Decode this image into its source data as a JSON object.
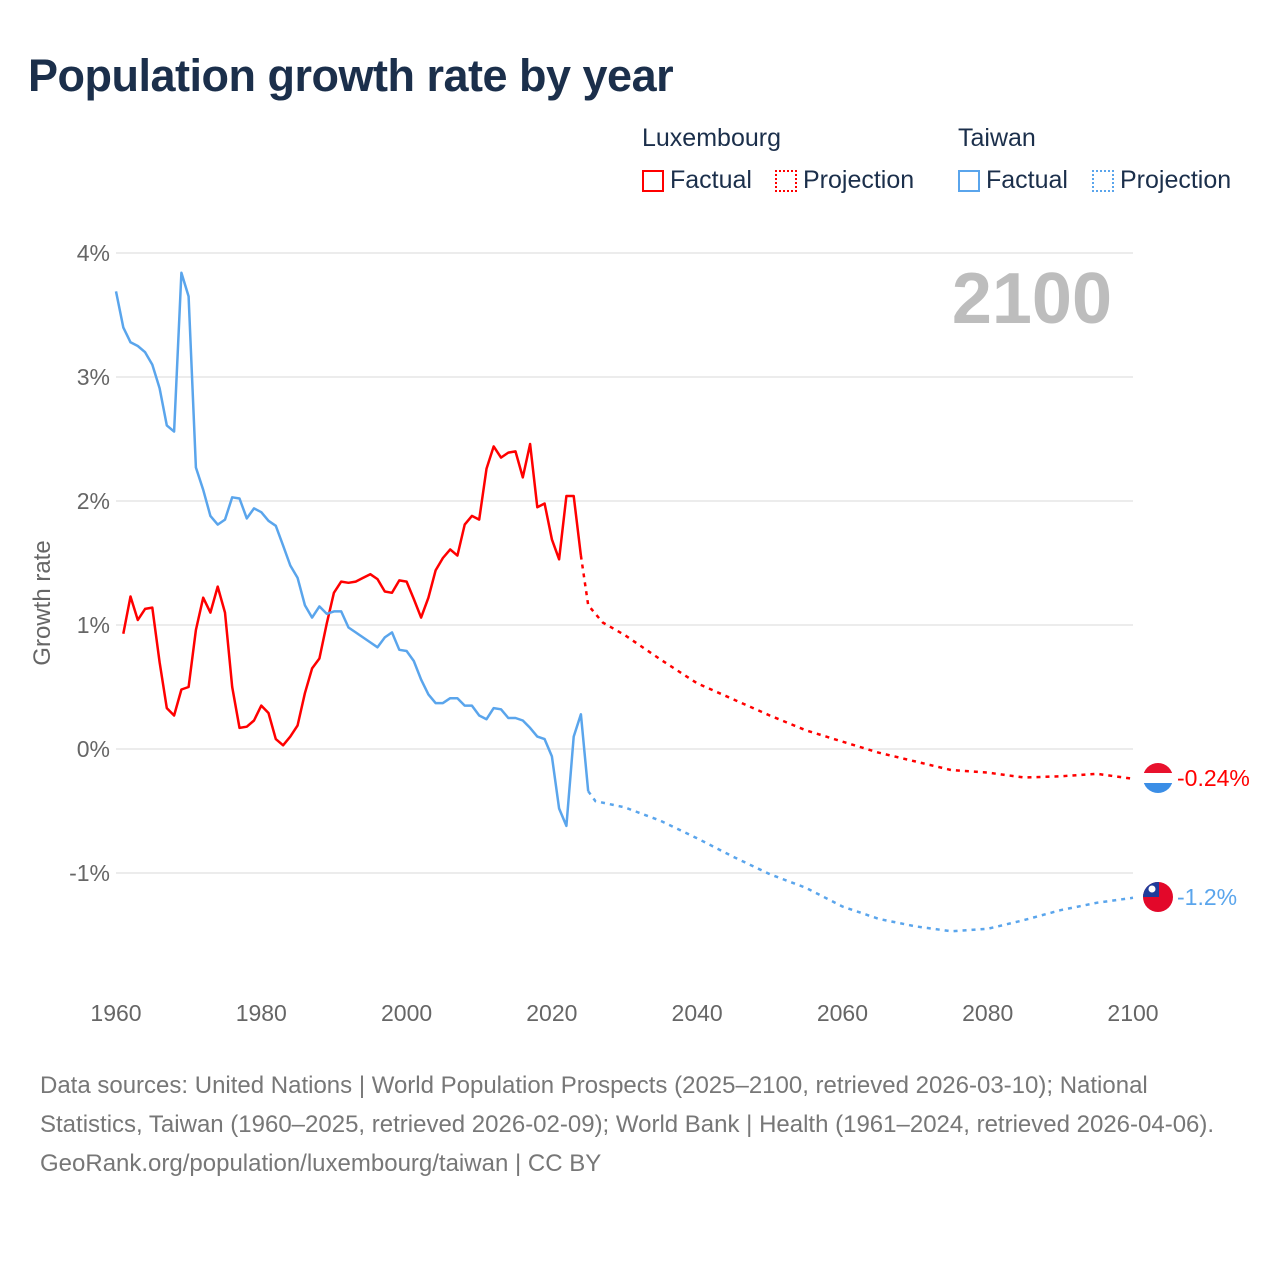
{
  "title": "Population growth rate by year",
  "legend": {
    "groups": [
      {
        "country": "Luxembourg",
        "factual": "Factual",
        "projection": "Projection",
        "color": "#ff0000"
      },
      {
        "country": "Taiwan",
        "factual": "Factual",
        "projection": "Projection",
        "color": "#5aa5ec"
      }
    ]
  },
  "year_watermark": "2100",
  "end_labels": {
    "luxembourg": "-0.24%",
    "taiwan": "-1.2%"
  },
  "footer": {
    "sources": "Data sources: United Nations | World Population Prospects (2025–2100, retrieved 2026-03-10); National Statistics, Taiwan (1960–2025, retrieved 2026-02-09); World Bank | Health (1961–2024, retrieved 2026-04-06).",
    "credit": "GeoRank.org/population/luxembourg/taiwan | CC BY"
  },
  "chart_data": {
    "type": "line",
    "title": "Population growth rate by year",
    "xlabel": "",
    "ylabel": "Growth rate",
    "xlim": [
      1960,
      2100
    ],
    "ylim": [
      -2,
      4
    ],
    "x_ticks": [
      "1960",
      "1980",
      "2000",
      "2020",
      "2040",
      "2060",
      "2080",
      "2100"
    ],
    "y_ticks": [
      {
        "v": 4,
        "label": "4%"
      },
      {
        "v": 3,
        "label": "3%"
      },
      {
        "v": 2,
        "label": "2%"
      },
      {
        "v": 1,
        "label": "1%"
      },
      {
        "v": 0,
        "label": "0%"
      },
      {
        "v": -1,
        "label": "-1%"
      }
    ],
    "grid": true,
    "legend_position": "top-right",
    "series": [
      {
        "name": "Luxembourg Factual",
        "color": "#ff0000",
        "dashed": false,
        "x": [
          1961,
          1962,
          1963,
          1964,
          1965,
          1966,
          1967,
          1968,
          1969,
          1970,
          1971,
          1972,
          1973,
          1974,
          1975,
          1976,
          1977,
          1978,
          1979,
          1980,
          1981,
          1982,
          1983,
          1984,
          1985,
          1986,
          1987,
          1988,
          1989,
          1990,
          1991,
          1992,
          1993,
          1994,
          1995,
          1996,
          1997,
          1998,
          1999,
          2000,
          2001,
          2002,
          2003,
          2004,
          2005,
          2006,
          2007,
          2008,
          2009,
          2010,
          2011,
          2012,
          2013,
          2014,
          2015,
          2016,
          2017,
          2018,
          2019,
          2020,
          2021,
          2022,
          2023,
          2024
        ],
        "y": [
          0.93,
          1.23,
          1.04,
          1.13,
          1.14,
          0.7,
          0.33,
          0.27,
          0.48,
          0.5,
          0.96,
          1.22,
          1.1,
          1.31,
          1.1,
          0.5,
          0.17,
          0.18,
          0.23,
          0.35,
          0.29,
          0.08,
          0.03,
          0.1,
          0.19,
          0.45,
          0.65,
          0.73,
          1.01,
          1.26,
          1.35,
          1.34,
          1.35,
          1.38,
          1.41,
          1.37,
          1.27,
          1.26,
          1.36,
          1.35,
          1.21,
          1.06,
          1.22,
          1.44,
          1.54,
          1.61,
          1.56,
          1.81,
          1.88,
          1.85,
          2.26,
          2.44,
          2.35,
          2.39,
          2.4,
          2.19,
          2.46,
          1.95,
          1.98,
          1.69,
          1.53,
          2.04,
          2.04,
          1.56
        ]
      },
      {
        "name": "Luxembourg Projection",
        "color": "#ff0000",
        "dashed": true,
        "x": [
          2024,
          2025,
          2027,
          2030,
          2035,
          2040,
          2045,
          2050,
          2055,
          2060,
          2065,
          2070,
          2075,
          2080,
          2085,
          2090,
          2095,
          2100
        ],
        "y": [
          1.56,
          1.16,
          1.02,
          0.92,
          0.72,
          0.53,
          0.4,
          0.27,
          0.15,
          0.06,
          -0.03,
          -0.1,
          -0.17,
          -0.19,
          -0.23,
          -0.22,
          -0.2,
          -0.24
        ]
      },
      {
        "name": "Taiwan Factual",
        "color": "#5aa5ec",
        "dashed": false,
        "x": [
          1960,
          1961,
          1962,
          1963,
          1964,
          1965,
          1966,
          1967,
          1968,
          1969,
          1970,
          1971,
          1972,
          1973,
          1974,
          1975,
          1976,
          1977,
          1978,
          1979,
          1980,
          1981,
          1982,
          1983,
          1984,
          1985,
          1986,
          1987,
          1988,
          1989,
          1990,
          1991,
          1992,
          1993,
          1994,
          1995,
          1996,
          1997,
          1998,
          1999,
          2000,
          2001,
          2002,
          2003,
          2004,
          2005,
          2006,
          2007,
          2008,
          2009,
          2010,
          2011,
          2012,
          2013,
          2014,
          2015,
          2016,
          2017,
          2018,
          2019,
          2020,
          2021,
          2022,
          2023,
          2024,
          2025
        ],
        "y": [
          3.69,
          3.4,
          3.28,
          3.25,
          3.2,
          3.1,
          2.91,
          2.61,
          2.56,
          3.84,
          3.65,
          2.27,
          2.09,
          1.88,
          1.81,
          1.85,
          2.03,
          2.02,
          1.86,
          1.94,
          1.91,
          1.84,
          1.8,
          1.64,
          1.48,
          1.38,
          1.16,
          1.06,
          1.15,
          1.09,
          1.11,
          1.11,
          0.98,
          0.94,
          0.9,
          0.86,
          0.82,
          0.9,
          0.94,
          0.8,
          0.79,
          0.71,
          0.56,
          0.44,
          0.37,
          0.37,
          0.41,
          0.41,
          0.35,
          0.35,
          0.27,
          0.24,
          0.33,
          0.32,
          0.25,
          0.25,
          0.23,
          0.17,
          0.1,
          0.08,
          -0.06,
          -0.48,
          -0.62,
          0.1,
          0.28,
          -0.34
        ]
      },
      {
        "name": "Taiwan Projection",
        "color": "#5aa5ec",
        "dashed": true,
        "x": [
          2025,
          2026,
          2030,
          2035,
          2040,
          2045,
          2050,
          2055,
          2060,
          2065,
          2070,
          2075,
          2080,
          2085,
          2090,
          2095,
          2100
        ],
        "y": [
          -0.34,
          -0.42,
          -0.47,
          -0.58,
          -0.72,
          -0.87,
          -1.01,
          -1.12,
          -1.27,
          -1.37,
          -1.43,
          -1.47,
          -1.45,
          -1.38,
          -1.3,
          -1.24,
          -1.2
        ]
      }
    ]
  }
}
